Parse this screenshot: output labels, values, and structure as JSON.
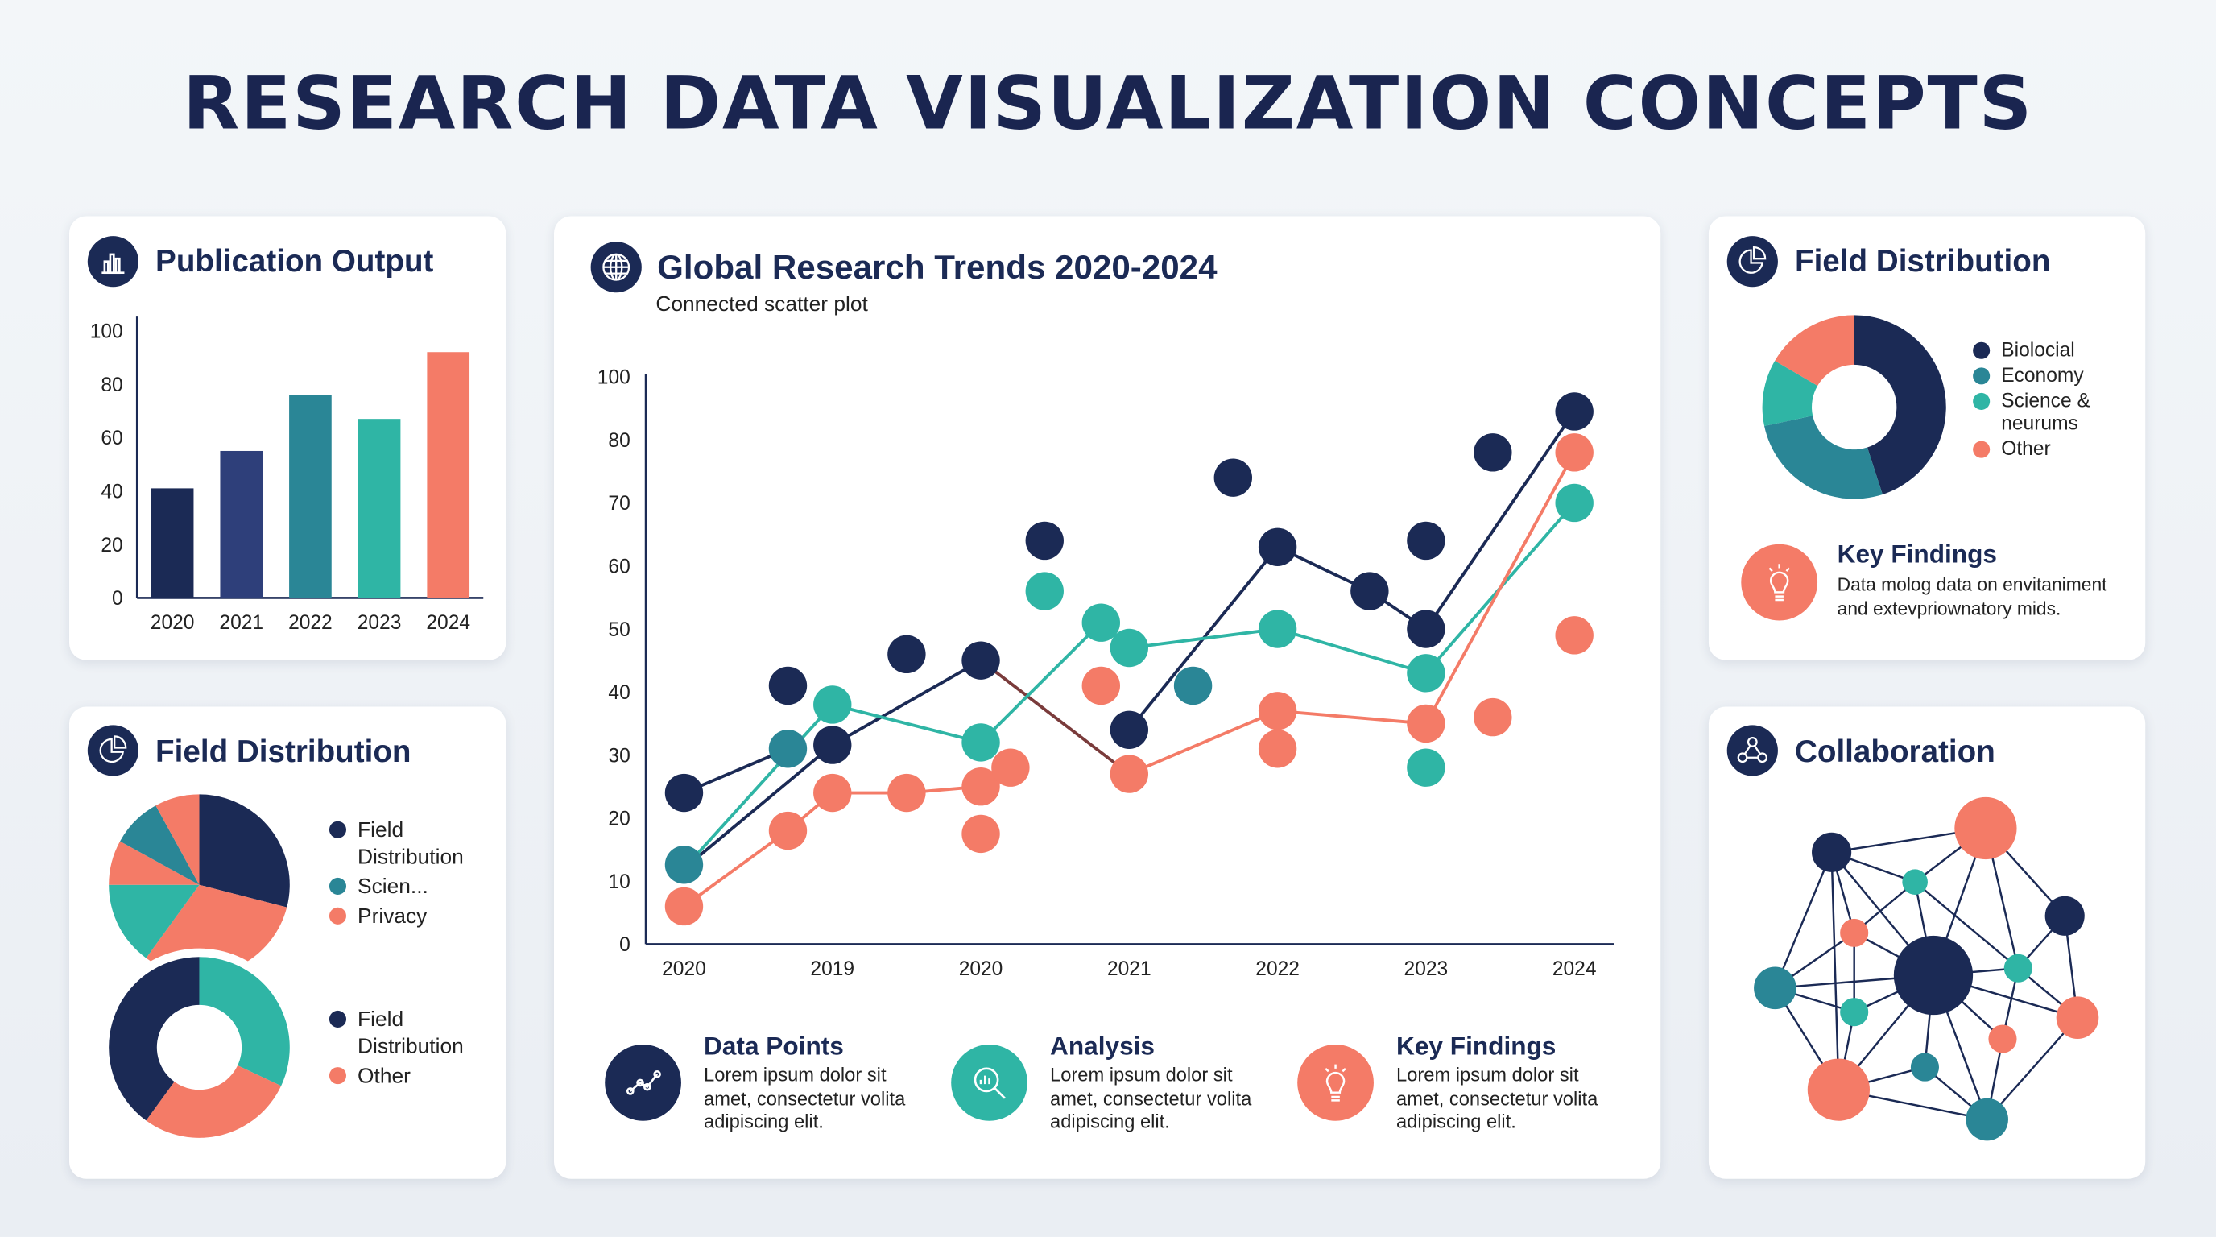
{
  "title": "RESEARCH DATA VISUALIZATION CONCEPTS",
  "colors": {
    "navy": "#1b2a55",
    "navy2": "#2e3f7a",
    "teal": "#2fb5a5",
    "dark_teal": "#2a8696",
    "orange": "#f47b67",
    "brown": "#7a3b3b",
    "background": "#eef2f6"
  },
  "publication_output": {
    "title": "Publication Output",
    "icon": "bar-chart-icon"
  },
  "field_distribution_left": {
    "title": "Field Distribution",
    "icon": "pie-chart-icon",
    "pie_legend": [
      {
        "label": "Field Distribution",
        "color": "#1b2a55"
      },
      {
        "label": "Scien...",
        "color": "#2a8696"
      },
      {
        "label": "Privacy",
        "color": "#f47b67"
      }
    ],
    "donut_legend": [
      {
        "label": "Field Distribution",
        "color": "#1b2a55"
      },
      {
        "label": "Other",
        "color": "#f47b67"
      }
    ]
  },
  "main": {
    "title": "Global Research Trends 2020-2024",
    "subtitle": "Connected scatter plot",
    "icon": "globe-icon",
    "features": [
      {
        "title": "Data Points",
        "text": "Lorem ipsum dolor sit amet, consectetur volita adipiscing elit.",
        "icon": "connected-points-icon",
        "color": "#1b2a55"
      },
      {
        "title": "Analysis",
        "text": "Lorem ipsum dolor sit amet, consectetur volita adipiscing elit.",
        "icon": "magnifier-chart-icon",
        "color": "#2fb5a5"
      },
      {
        "title": "Key Findings",
        "text": "Lorem ipsum dolor sit amet, consectetur volita adipiscing elit.",
        "icon": "lightbulb-icon",
        "color": "#f47b67"
      }
    ]
  },
  "field_distribution_right": {
    "title": "Field Distribution",
    "icon": "pie-chart-icon",
    "legend": [
      {
        "label": "Biolocial",
        "color": "#1b2a55"
      },
      {
        "label": "Economy",
        "color": "#2a8696"
      },
      {
        "label": "Science & neurums",
        "color": "#2fb5a5"
      },
      {
        "label": "Other",
        "color": "#f47b67"
      }
    ],
    "key_findings": {
      "title": "Key Findings",
      "text": "Data molog data on envitaniment and extevpriownatory mids.",
      "icon": "lightbulb-icon"
    }
  },
  "collaboration": {
    "title": "Collaboration",
    "icon": "network-icon"
  },
  "chart_data": [
    {
      "type": "bar",
      "categories": [
        "2020",
        "2021",
        "2022",
        "2023",
        "2024"
      ],
      "values": [
        41,
        55,
        76,
        67,
        92
      ],
      "colors": [
        "#1b2a55",
        "#2e3f7a",
        "#2a8696",
        "#2fb5a5",
        "#f47b67"
      ],
      "yticks": [
        "0",
        "20",
        "40",
        "60",
        "80",
        "100"
      ],
      "ylim": [
        0,
        100
      ]
    },
    {
      "type": "pie",
      "values": [
        29,
        31,
        15,
        8,
        9,
        8
      ],
      "colors": [
        "#1b2a55",
        "#f47b67",
        "#2fb5a5",
        "#f47b67",
        "#2a8696",
        "#f47b67"
      ]
    },
    {
      "type": "pie",
      "donut": true,
      "values": [
        32,
        28,
        40
      ],
      "colors": [
        "#2fb5a5",
        "#f47b67",
        "#1b2a55"
      ]
    },
    {
      "type": "scatter",
      "connected": true,
      "xticks": [
        "2020",
        "2019",
        "2020",
        "2021",
        "2022",
        "2023",
        "2024"
      ],
      "yticks": [
        "0",
        "10",
        "20",
        "30",
        "40",
        "50",
        "60",
        "70",
        "80",
        "100"
      ],
      "lines": [
        {
          "color": "#1b2a55",
          "points": [
            [
              0,
              24
            ],
            [
              0.7,
              31
            ]
          ]
        },
        {
          "color": "#1b2a55",
          "points": [
            [
              0,
              12
            ],
            [
              1,
              31.6
            ],
            [
              2,
              45
            ]
          ]
        },
        {
          "color": "#7a3b3b",
          "points": [
            [
              2,
              45
            ],
            [
              3,
              27
            ]
          ]
        },
        {
          "color": "#1b2a55",
          "points": [
            [
              3,
              34
            ],
            [
              4,
              63
            ],
            [
              4.62,
              56
            ],
            [
              5,
              50
            ],
            [
              6,
              89
            ]
          ]
        },
        {
          "color": "#2fb5a5",
          "points": [
            [
              0,
              12
            ],
            [
              1,
              38
            ],
            [
              2,
              32
            ],
            [
              2.81,
              51
            ],
            [
              3,
              47
            ],
            [
              4,
              50
            ],
            [
              5,
              43
            ],
            [
              6,
              70
            ]
          ]
        },
        {
          "color": "#f47b67",
          "points": [
            [
              0,
              6
            ],
            [
              0.7,
              18
            ],
            [
              1,
              24
            ],
            [
              1.5,
              24
            ],
            [
              2,
              25
            ]
          ]
        },
        {
          "color": "#f47b67",
          "points": [
            [
              3,
              27
            ],
            [
              4,
              37
            ],
            [
              5,
              35
            ],
            [
              6,
              78
            ]
          ]
        }
      ],
      "points": [
        {
          "color": "#1b2a55",
          "xy": [
            [
              0,
              24
            ],
            [
              0.7,
              41
            ],
            [
              1,
              31.6
            ],
            [
              1.5,
              46
            ],
            [
              2,
              45
            ],
            [
              2.43,
              64
            ],
            [
              3,
              34
            ],
            [
              3.7,
              74
            ],
            [
              4,
              63
            ],
            [
              4.62,
              56
            ],
            [
              5,
              50
            ],
            [
              5,
              64
            ],
            [
              5.45,
              78
            ],
            [
              6,
              89
            ]
          ]
        },
        {
          "color": "#2fb5a5",
          "xy": [
            [
              1,
              38
            ],
            [
              2,
              32
            ],
            [
              2.43,
              56
            ],
            [
              2.81,
              51
            ],
            [
              3,
              47
            ],
            [
              4,
              50
            ],
            [
              5,
              43
            ],
            [
              5,
              28
            ],
            [
              6,
              70
            ]
          ]
        },
        {
          "color": "#2a8696",
          "xy": [
            [
              0,
              12.6
            ],
            [
              0.7,
              31
            ],
            [
              3.43,
              41
            ]
          ]
        },
        {
          "color": "#f47b67",
          "xy": [
            [
              0,
              6
            ],
            [
              0.7,
              18
            ],
            [
              1,
              24
            ],
            [
              1.5,
              24
            ],
            [
              2,
              25
            ],
            [
              2.2,
              28
            ],
            [
              2,
              17.5
            ],
            [
              2.81,
              41
            ],
            [
              3,
              27
            ],
            [
              4,
              37
            ],
            [
              4,
              31
            ],
            [
              5,
              35
            ],
            [
              5.45,
              36
            ],
            [
              6,
              78
            ],
            [
              6,
              49
            ]
          ]
        }
      ]
    },
    {
      "type": "pie",
      "donut": true,
      "labels": [
        "Biolocial",
        "Economy",
        "Science & neurums",
        "Other"
      ],
      "values": [
        45,
        26.7,
        11.7,
        16.6
      ],
      "colors": [
        "#1b2a55",
        "#2a8696",
        "#2fb5a5",
        "#f47b67"
      ]
    }
  ]
}
